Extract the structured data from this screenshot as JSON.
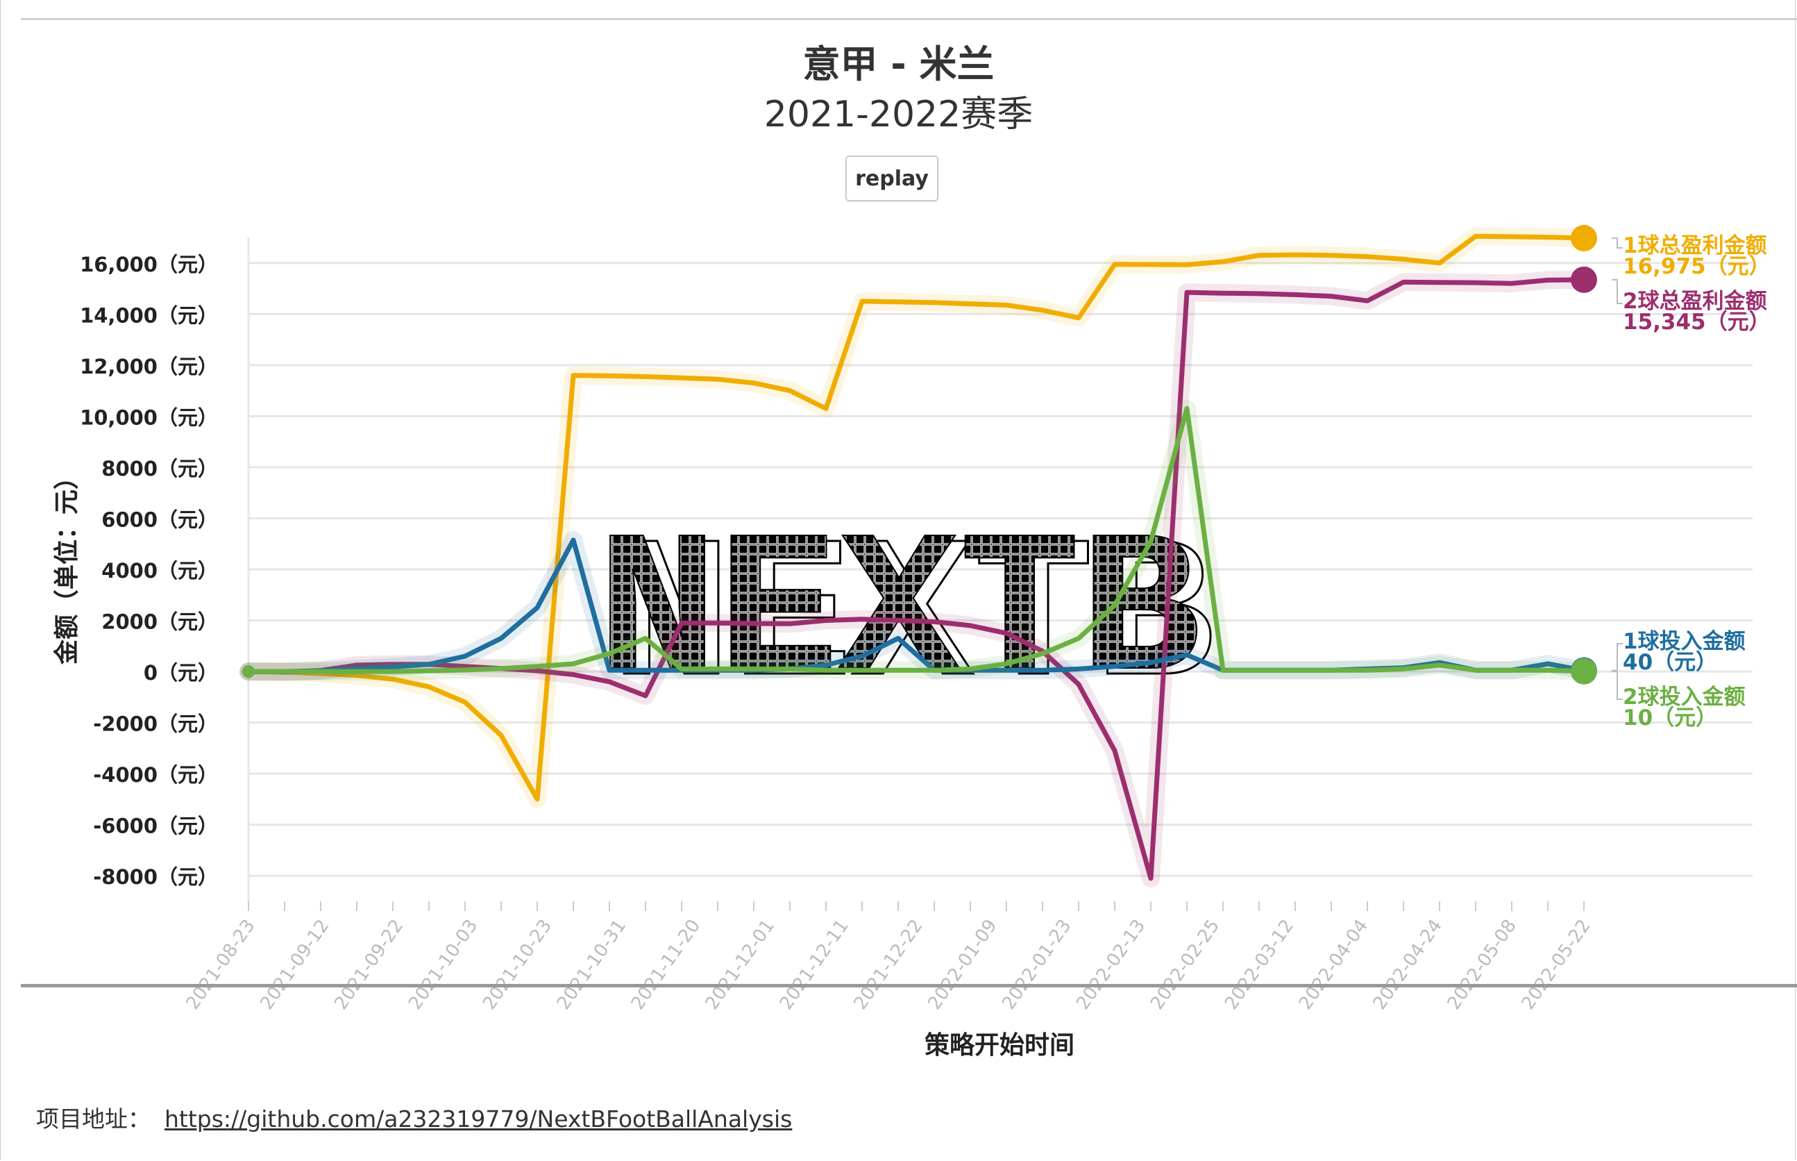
{
  "header": {
    "title": "意甲 - 米兰",
    "subtitle": "2021-2022赛季",
    "replay_label": "replay"
  },
  "footer": {
    "label": "项目地址：",
    "link_text": "https://github.com/a232319779/NextBFootBallAnalysis"
  },
  "watermark_text": "NEXTB",
  "chart_data": {
    "type": "line",
    "xlabel": "策略开始时间",
    "ylabel": "金额（单位：元）",
    "ylim": [
      -9000,
      17000
    ],
    "grid": true,
    "y_ticks": [
      {
        "value": 16000,
        "label": "16,000（元）"
      },
      {
        "value": 14000,
        "label": "14,000（元）"
      },
      {
        "value": 12000,
        "label": "12,000（元）"
      },
      {
        "value": 10000,
        "label": "10,000（元）"
      },
      {
        "value": 8000,
        "label": "8000（元）"
      },
      {
        "value": 6000,
        "label": "6000（元）"
      },
      {
        "value": 4000,
        "label": "4000（元）"
      },
      {
        "value": 2000,
        "label": "2000（元）"
      },
      {
        "value": 0,
        "label": "0（元）"
      },
      {
        "value": -2000,
        "label": "-2000（元）"
      },
      {
        "value": -4000,
        "label": "-4000（元）"
      },
      {
        "value": -6000,
        "label": "-6000（元）"
      },
      {
        "value": -8000,
        "label": "-8000（元）"
      }
    ],
    "x_tick_labels": [
      "2021-08-23",
      "2021-09-12",
      "2021-09-22",
      "2021-10-03",
      "2021-10-23",
      "2021-10-31",
      "2021-11-20",
      "2021-12-01",
      "2021-12-11",
      "2021-12-22",
      "2022-01-09",
      "2022-01-23",
      "2022-02-13",
      "2022-02-25",
      "2022-03-12",
      "2022-04-04",
      "2022-04-24",
      "2022-05-08",
      "2022-05-22"
    ],
    "series": [
      {
        "name": "1球总盈利金额",
        "color": "#f0ad00",
        "end_label": "1球总盈利金额",
        "end_value": "16,975（元）",
        "values": [
          0,
          -20,
          -80,
          -150,
          -300,
          -600,
          -1200,
          -2500,
          -5000,
          11600,
          11580,
          11550,
          11500,
          11450,
          11300,
          11000,
          10300,
          14500,
          14480,
          14450,
          14400,
          14350,
          14150,
          13850,
          15950,
          15940,
          15930,
          16050,
          16300,
          16320,
          16300,
          16250,
          16150,
          16000,
          17050,
          17030,
          17010,
          16975
        ]
      },
      {
        "name": "2球总盈利金额",
        "color": "#9c2e6e",
        "end_label": "2球总盈利金额",
        "end_value": "15,345（元）",
        "values": [
          0,
          -20,
          40,
          250,
          280,
          280,
          200,
          120,
          30,
          -120,
          -400,
          -950,
          1900,
          1900,
          1880,
          1870,
          2000,
          2050,
          2000,
          1950,
          1800,
          1500,
          800,
          -500,
          -3100,
          -8100,
          14850,
          14820,
          14800,
          14760,
          14700,
          14520,
          15250,
          15240,
          15230,
          15200,
          15330,
          15345
        ]
      },
      {
        "name": "1球投入金额",
        "color": "#1f6ea0",
        "end_label": "1球投入金额",
        "end_value": "40（元）",
        "values": [
          0,
          0,
          30,
          100,
          180,
          280,
          600,
          1300,
          2500,
          5150,
          50,
          50,
          50,
          50,
          50,
          100,
          250,
          600,
          1300,
          50,
          50,
          50,
          50,
          100,
          200,
          350,
          650,
          50,
          50,
          50,
          50,
          100,
          150,
          350,
          50,
          50,
          300,
          40
        ]
      },
      {
        "name": "2球投入金额",
        "color": "#6bb043",
        "end_label": "2球投入金额",
        "end_value": "10（元）",
        "values": [
          0,
          0,
          0,
          0,
          0,
          30,
          60,
          120,
          200,
          300,
          700,
          1300,
          100,
          100,
          100,
          100,
          50,
          50,
          50,
          50,
          100,
          300,
          700,
          1300,
          2600,
          5100,
          10300,
          50,
          50,
          50,
          50,
          50,
          100,
          250,
          50,
          50,
          50,
          10
        ]
      }
    ]
  }
}
